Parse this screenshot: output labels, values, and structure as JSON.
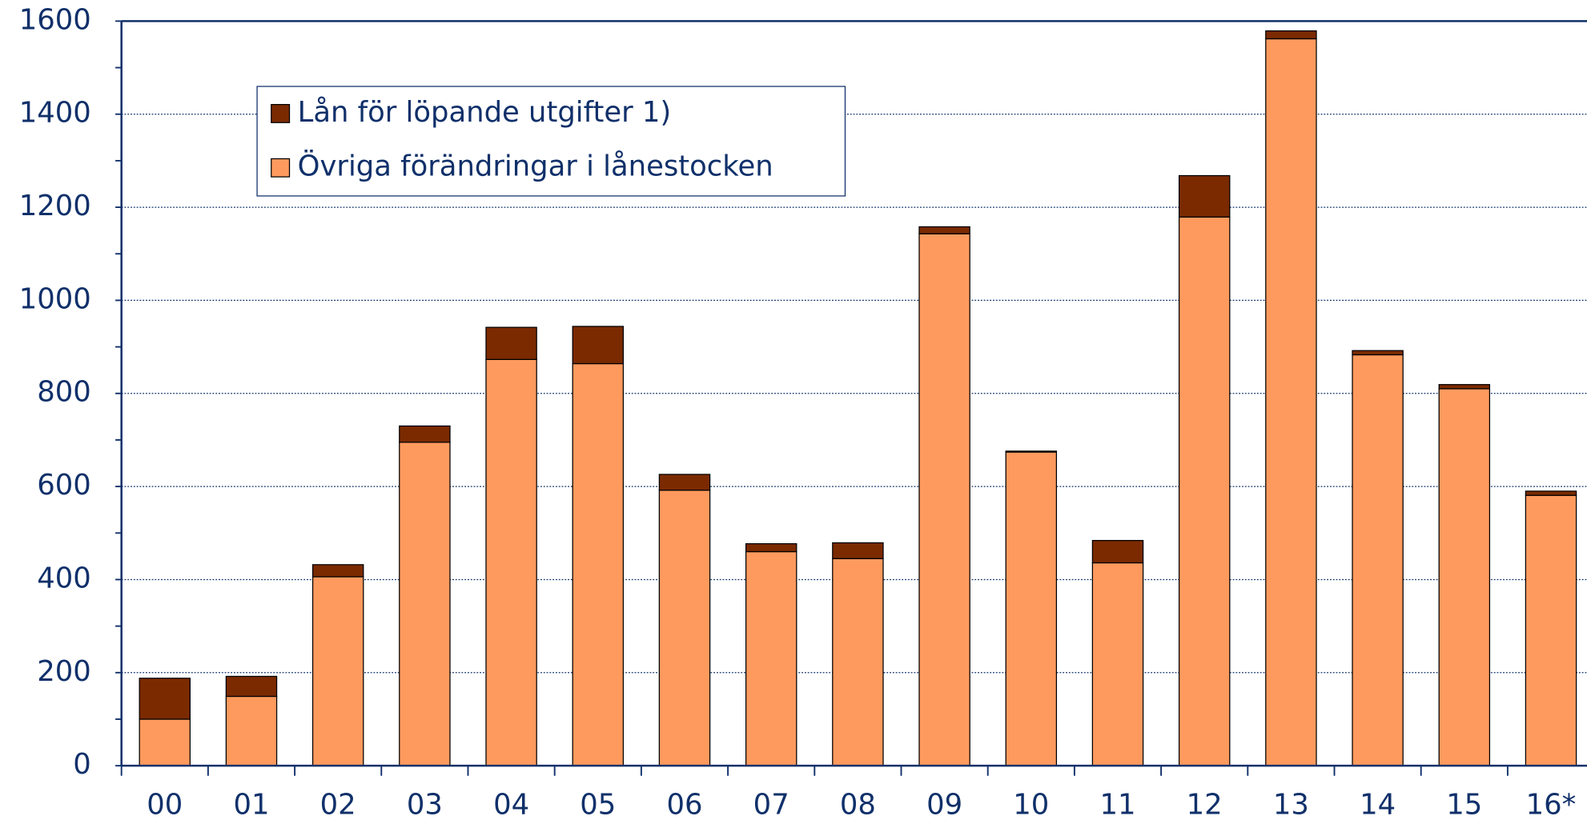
{
  "chart_data": {
    "type": "stacked_bar",
    "categories": [
      "00",
      "01",
      "02",
      "03",
      "04",
      "05",
      "06",
      "07",
      "08",
      "09",
      "10",
      "11",
      "12",
      "13",
      "14",
      "15",
      "16*"
    ],
    "series": [
      {
        "name": "Övriga förändringar i lånestocken",
        "color": "#ff9a5e",
        "values": [
          100,
          149,
          406,
          695,
          873,
          864,
          592,
          460,
          445,
          1143,
          674,
          436,
          1179,
          1562,
          883,
          810,
          581
        ]
      },
      {
        "name": "Lån för löpande utgifter 1)",
        "color": "#7b2a00",
        "values": [
          88,
          43,
          26,
          35,
          69,
          80,
          34,
          17,
          34,
          15,
          2,
          48,
          89,
          17,
          9,
          9,
          9
        ]
      }
    ],
    "ylim": [
      0,
      1600
    ],
    "yticks": [
      0,
      200,
      400,
      600,
      800,
      1000,
      1200,
      1400,
      1600
    ],
    "grid": true
  }
}
